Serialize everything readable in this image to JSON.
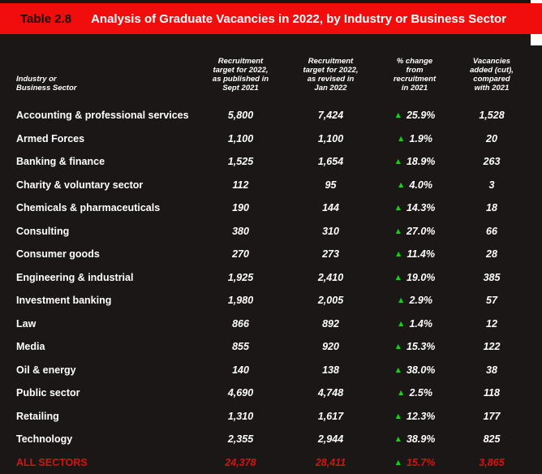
{
  "header": {
    "table_label": "Table 2.8",
    "title": "Analysis of Graduate Vacancies in 2022, by Industry or Business Sector"
  },
  "columns": {
    "sector": "Industry or\nBusiness Sector",
    "target_published": "Recruitment\ntarget for 2022,\nas published in\nSept 2021",
    "target_revised": "Recruitment\ntarget for 2022,\nas revised in\nJan 2022",
    "pct_change": "% change\nfrom\nrecruitment\nin 2021",
    "vacancies": "Vacancies\nadded (cut),\ncompared\nwith 2021"
  },
  "icons": {
    "up_triangle": "▲"
  },
  "rows": [
    {
      "sector": "Accounting & professional services",
      "target_published": "5,800",
      "target_revised": "7,424",
      "pct_change": "25.9%",
      "direction": "up",
      "vacancies": "1,528"
    },
    {
      "sector": "Armed Forces",
      "target_published": "1,100",
      "target_revised": "1,100",
      "pct_change": "1.9%",
      "direction": "up",
      "vacancies": "20"
    },
    {
      "sector": "Banking & finance",
      "target_published": "1,525",
      "target_revised": "1,654",
      "pct_change": "18.9%",
      "direction": "up",
      "vacancies": "263"
    },
    {
      "sector": "Charity & voluntary sector",
      "target_published": "112",
      "target_revised": "95",
      "pct_change": "4.0%",
      "direction": "up",
      "vacancies": "3"
    },
    {
      "sector": "Chemicals & pharmaceuticals",
      "target_published": "190",
      "target_revised": "144",
      "pct_change": "14.3%",
      "direction": "up",
      "vacancies": "18"
    },
    {
      "sector": "Consulting",
      "target_published": "380",
      "target_revised": "310",
      "pct_change": "27.0%",
      "direction": "up",
      "vacancies": "66"
    },
    {
      "sector": "Consumer goods",
      "target_published": "270",
      "target_revised": "273",
      "pct_change": "11.4%",
      "direction": "up",
      "vacancies": "28"
    },
    {
      "sector": "Engineering & industrial",
      "target_published": "1,925",
      "target_revised": "2,410",
      "pct_change": "19.0%",
      "direction": "up",
      "vacancies": "385"
    },
    {
      "sector": "Investment banking",
      "target_published": "1,980",
      "target_revised": "2,005",
      "pct_change": "2.9%",
      "direction": "up",
      "vacancies": "57"
    },
    {
      "sector": "Law",
      "target_published": "866",
      "target_revised": "892",
      "pct_change": "1.4%",
      "direction": "up",
      "vacancies": "12"
    },
    {
      "sector": "Media",
      "target_published": "855",
      "target_revised": "920",
      "pct_change": "15.3%",
      "direction": "up",
      "vacancies": "122"
    },
    {
      "sector": "Oil & energy",
      "target_published": "140",
      "target_revised": "138",
      "pct_change": "38.0%",
      "direction": "up",
      "vacancies": "38"
    },
    {
      "sector": "Public sector",
      "target_published": "4,690",
      "target_revised": "4,748",
      "pct_change": "2.5%",
      "direction": "up",
      "vacancies": "118"
    },
    {
      "sector": "Retailing",
      "target_published": "1,310",
      "target_revised": "1,617",
      "pct_change": "12.3%",
      "direction": "up",
      "vacancies": "177"
    },
    {
      "sector": "Technology",
      "target_published": "2,355",
      "target_revised": "2,944",
      "pct_change": "38.9%",
      "direction": "up",
      "vacancies": "825"
    }
  ],
  "total_row": {
    "sector": "ALL SECTORS",
    "target_published": "24,378",
    "target_revised": "28,411",
    "pct_change": "15.7%",
    "direction": "up",
    "vacancies": "3,865"
  },
  "colors": {
    "header_bar_red": "#f20d0d",
    "total_text_red": "#d41411",
    "up_green": "#10d410",
    "background": "#1c1717",
    "text_white": "#ffffff"
  }
}
